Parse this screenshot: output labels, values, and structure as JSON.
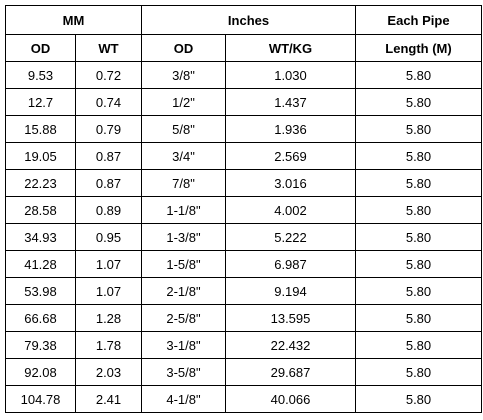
{
  "header": {
    "group_mm": "MM",
    "group_inches": "Inches",
    "group_each_pipe": "Each Pipe",
    "col_od_mm": "OD",
    "col_wt": "WT",
    "col_od_in": "OD",
    "col_wt_kg": "WT/KG",
    "col_length": "Length (M)"
  },
  "rows": [
    {
      "od_mm": "9.53",
      "wt": "0.72",
      "od_in": "3/8\"",
      "wt_kg": "1.030",
      "length": "5.80"
    },
    {
      "od_mm": "12.7",
      "wt": "0.74",
      "od_in": "1/2\"",
      "wt_kg": "1.437",
      "length": "5.80"
    },
    {
      "od_mm": "15.88",
      "wt": "0.79",
      "od_in": "5/8\"",
      "wt_kg": "1.936",
      "length": "5.80"
    },
    {
      "od_mm": "19.05",
      "wt": "0.87",
      "od_in": "3/4\"",
      "wt_kg": "2.569",
      "length": "5.80"
    },
    {
      "od_mm": "22.23",
      "wt": "0.87",
      "od_in": "7/8\"",
      "wt_kg": "3.016",
      "length": "5.80"
    },
    {
      "od_mm": "28.58",
      "wt": "0.89",
      "od_in": "1-1/8\"",
      "wt_kg": "4.002",
      "length": "5.80"
    },
    {
      "od_mm": "34.93",
      "wt": "0.95",
      "od_in": "1-3/8\"",
      "wt_kg": "5.222",
      "length": "5.80"
    },
    {
      "od_mm": "41.28",
      "wt": "1.07",
      "od_in": "1-5/8\"",
      "wt_kg": "6.987",
      "length": "5.80"
    },
    {
      "od_mm": "53.98",
      "wt": "1.07",
      "od_in": "2-1/8\"",
      "wt_kg": "9.194",
      "length": "5.80"
    },
    {
      "od_mm": "66.68",
      "wt": "1.28",
      "od_in": "2-5/8\"",
      "wt_kg": "13.595",
      "length": "5.80"
    },
    {
      "od_mm": "79.38",
      "wt": "1.78",
      "od_in": "3-1/8\"",
      "wt_kg": "22.432",
      "length": "5.80"
    },
    {
      "od_mm": "92.08",
      "wt": "2.03",
      "od_in": "3-5/8\"",
      "wt_kg": "29.687",
      "length": "5.80"
    },
    {
      "od_mm": "104.78",
      "wt": "2.41",
      "od_in": "4-1/8\"",
      "wt_kg": "40.066",
      "length": "5.80"
    }
  ]
}
